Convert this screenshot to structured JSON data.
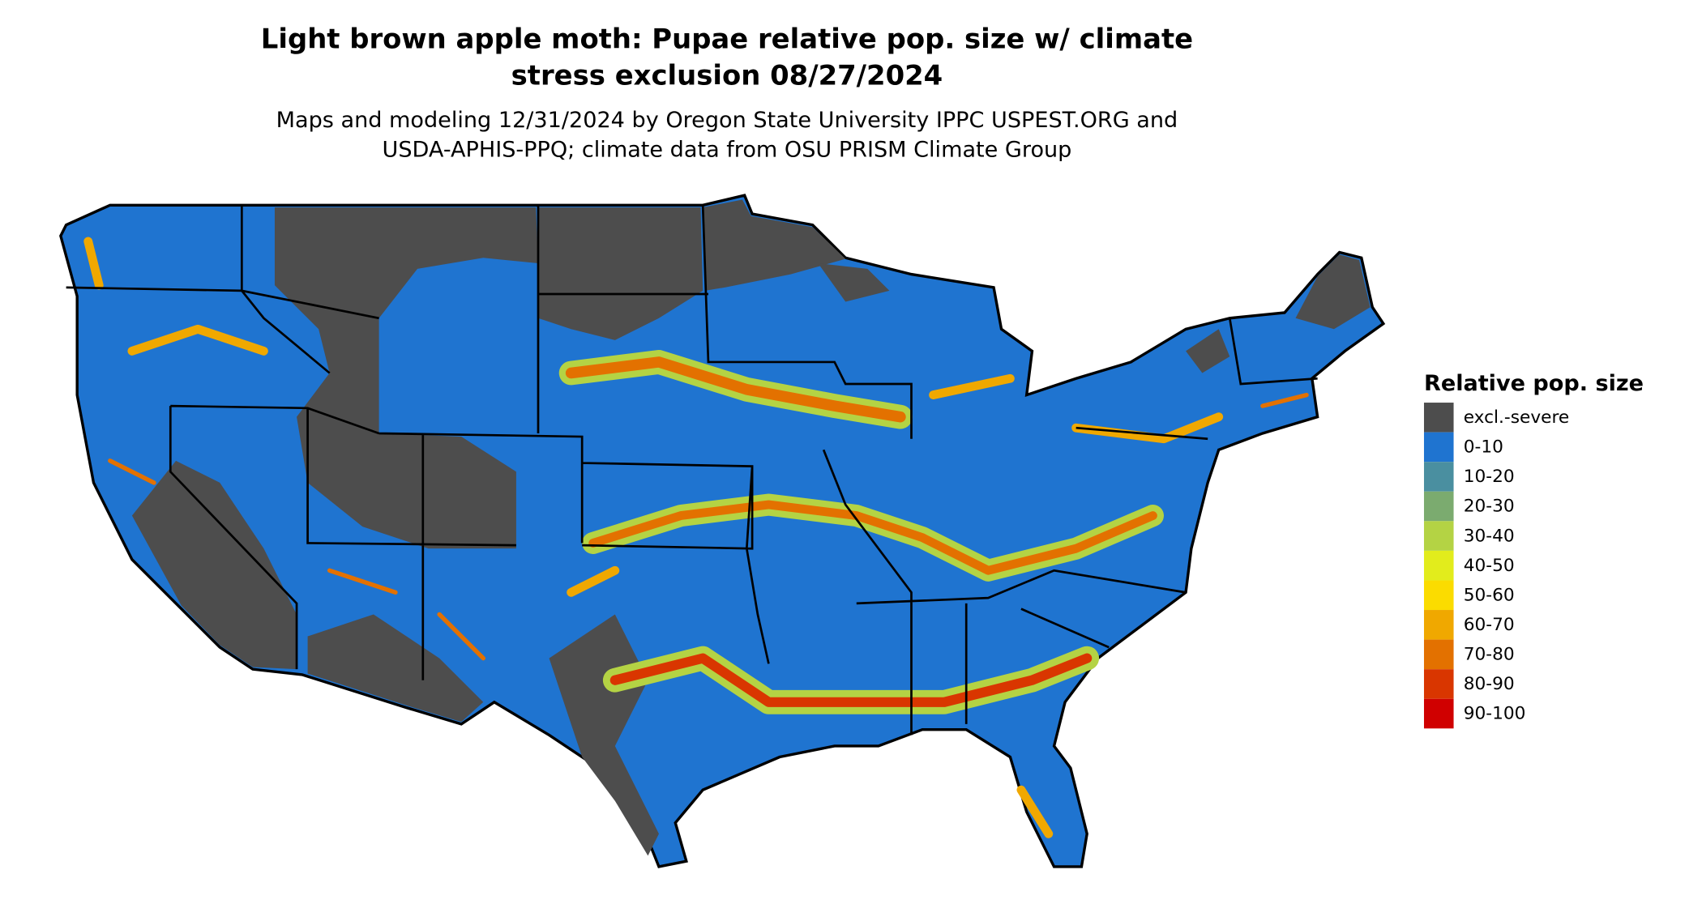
{
  "title": [
    "Light brown apple moth: Pupae relative pop. size w/ climate",
    "stress exclusion 08/27/2024"
  ],
  "subtitle": [
    "Maps and modeling 12/31/2024 by Oregon State University IPPC USPEST.ORG and",
    "USDA-APHIS-PPQ; climate data from OSU PRISM Climate Group"
  ],
  "legend": {
    "title": "Relative pop. size",
    "items": [
      {
        "label": "excl.-severe",
        "color": "#4d4d4d"
      },
      {
        "label": "0-10",
        "color": "#1f74d0"
      },
      {
        "label": "10-20",
        "color": "#4a8fa0"
      },
      {
        "label": "20-30",
        "color": "#7bab6f"
      },
      {
        "label": "30-40",
        "color": "#b4d344"
      },
      {
        "label": "40-50",
        "color": "#e2ec1c"
      },
      {
        "label": "50-60",
        "color": "#fbdc00"
      },
      {
        "label": "60-70",
        "color": "#f0a800"
      },
      {
        "label": "70-80",
        "color": "#e37100"
      },
      {
        "label": "80-90",
        "color": "#d93600"
      },
      {
        "label": "90-100",
        "color": "#d00000"
      }
    ]
  }
}
